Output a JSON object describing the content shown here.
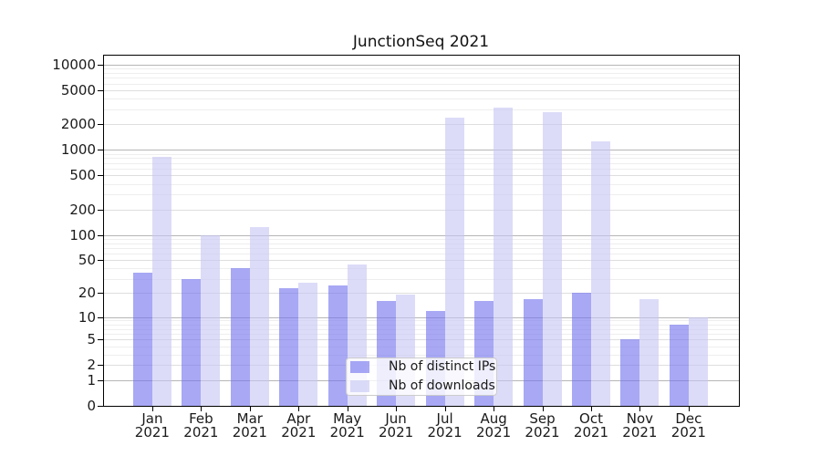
{
  "chart_data": {
    "type": "bar",
    "title": "JunctionSeq 2021",
    "categories": [
      "Jan",
      "Feb",
      "Mar",
      "Apr",
      "May",
      "Jun",
      "Jul",
      "Aug",
      "Sep",
      "Oct",
      "Nov",
      "Dec"
    ],
    "x_year_label": "2021",
    "series": [
      {
        "name": "Nb of distinct IPs",
        "color": "#7373ef",
        "fill_alpha": 0.62,
        "values": [
          35,
          30,
          40,
          23,
          25,
          16,
          12,
          16,
          17,
          20,
          5,
          8
        ]
      },
      {
        "name": "Nb of downloads",
        "color": "#c7c7f4",
        "fill_alpha": 0.62,
        "values": [
          830,
          100,
          125,
          27,
          44,
          19,
          2400,
          3100,
          2800,
          1250,
          17,
          10
        ]
      }
    ],
    "y_axis": {
      "scale": "log10(1+v)",
      "ticks": [
        0,
        1,
        2,
        5,
        10,
        20,
        50,
        100,
        200,
        500,
        1000,
        2000,
        5000,
        10000
      ],
      "minor_ticks": [
        3,
        4,
        6,
        7,
        8,
        9,
        30,
        40,
        60,
        70,
        80,
        90,
        300,
        400,
        600,
        700,
        800,
        900,
        3000,
        4000,
        6000,
        7000,
        8000,
        9000
      ],
      "top": 12400
    },
    "legend": {
      "position": "lower center",
      "items": [
        "Nb of distinct IPs",
        "Nb of downloads"
      ]
    },
    "grid": true,
    "colors": {
      "axis": "#000000",
      "tick_label": "#1a1a1a",
      "grid_major": "#b6b6b6",
      "grid_mid": "#dedede",
      "grid_minor": "#eeeeee",
      "legend_border": "#cccccc",
      "legend_bg": "rgba(255,255,255,0.8)",
      "background": "#ffffff"
    }
  }
}
